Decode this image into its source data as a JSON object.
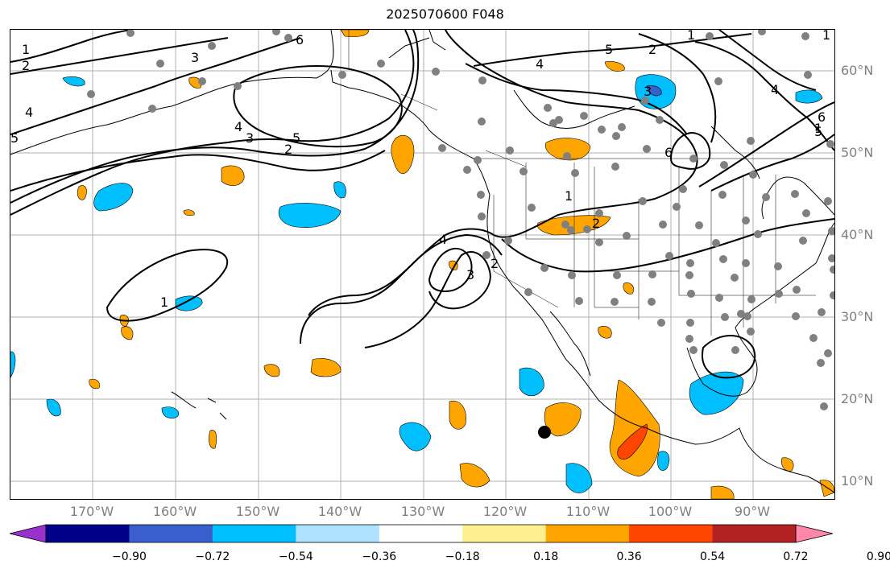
{
  "title": "2025070600 F048",
  "lat_labels": [
    "60°N",
    "50°N",
    "40°N",
    "30°N",
    "20°N",
    "10°N"
  ],
  "lon_labels": [
    "170°W",
    "160°W",
    "150°W",
    "140°W",
    "130°W",
    "120°W",
    "110°W",
    "100°W",
    "90°W"
  ],
  "colorbar": {
    "colors": [
      "#9932cc",
      "#00008b",
      "#3a5fcd",
      "#00bfff",
      "#b0e2ff",
      "#ffffff",
      "#fff08f",
      "#ffa500",
      "#ff4500",
      "#b22222",
      "#ff88aa"
    ],
    "labels": [
      "−0.90",
      "−0.72",
      "−0.54",
      "−0.36",
      "−0.18",
      "0.18",
      "0.36",
      "0.54",
      "0.72",
      "0.90"
    ]
  },
  "contour_labels": [
    "1",
    "2",
    "3",
    "4",
    "5",
    "6",
    "1",
    "2",
    "3",
    "4",
    "5",
    "4",
    "3",
    "2",
    "1",
    "4",
    "3",
    "2",
    "1",
    "2",
    "5",
    "1",
    "4",
    "6",
    "6",
    "5",
    "1"
  ],
  "marker": "station-dot"
}
